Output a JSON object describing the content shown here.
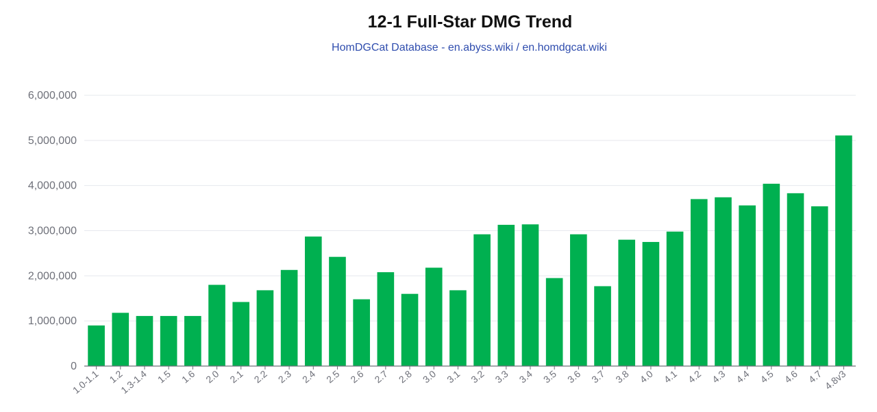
{
  "chart_data": {
    "type": "bar",
    "title": "12-1 Full-Star DMG Trend",
    "subtitle": "HomDGCat Database - en.abyss.wiki / en.homdgcat.wiki",
    "xlabel": "",
    "ylabel": "",
    "categories": [
      "1.0-1.1",
      "1.2",
      "1.3-1.4",
      "1.5",
      "1.6",
      "2.0",
      "2.1",
      "2.2",
      "2.3",
      "2.4",
      "2.5",
      "2.6",
      "2.7",
      "2.8",
      "3.0",
      "3.1",
      "3.2",
      "3.3",
      "3.4",
      "3.5",
      "3.6",
      "3.7",
      "3.8",
      "4.0",
      "4.1",
      "4.2",
      "4.3",
      "4.4",
      "4.5",
      "4.6",
      "4.7",
      "4.8v3"
    ],
    "values": [
      900000,
      1180000,
      1110000,
      1110000,
      1110000,
      1800000,
      1420000,
      1680000,
      2130000,
      2870000,
      2420000,
      1480000,
      2080000,
      1600000,
      2180000,
      1680000,
      2920000,
      3130000,
      3140000,
      1950000,
      2920000,
      1770000,
      2800000,
      2750000,
      2980000,
      3700000,
      3740000,
      3560000,
      4040000,
      3830000,
      3540000,
      5110000
    ],
    "ylim": [
      0,
      6000000
    ],
    "yticks": [
      0,
      1000000,
      2000000,
      3000000,
      4000000,
      5000000,
      6000000
    ],
    "ytick_labels": [
      "0",
      "1,000,000",
      "2,000,000",
      "3,000,000",
      "4,000,000",
      "5,000,000",
      "6,000,000"
    ],
    "grid": true,
    "colors": {
      "bar": "#00b050",
      "grid": "#e6e8ee",
      "axis": "#6e7079",
      "title": "#111111",
      "subtitle": "#2f4dae"
    }
  }
}
